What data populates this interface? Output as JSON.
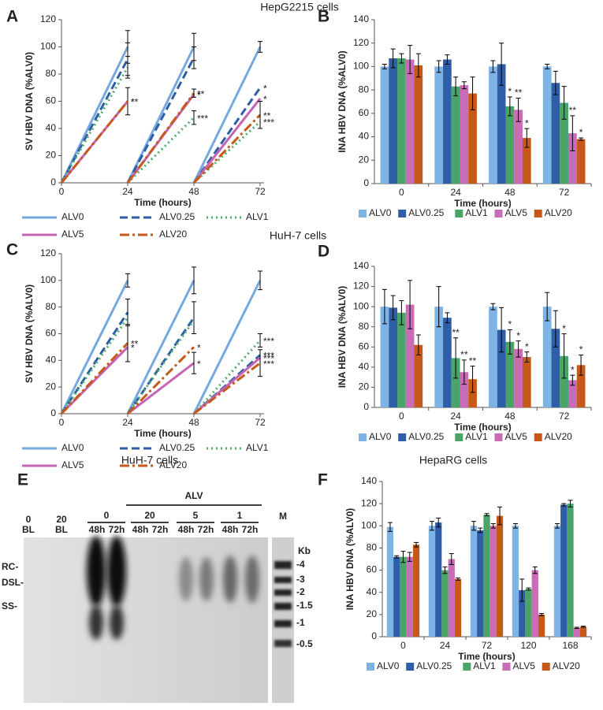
{
  "chart_data": [
    {
      "type": "line",
      "panel": "A",
      "title": "HepG2215 cells",
      "xlabel": "Time (hours)",
      "ylabel": "SV HBV DNA (%ALV0)",
      "x": [
        0,
        24,
        24,
        24,
        48,
        48,
        48,
        72
      ],
      "xlim": [
        0,
        72
      ],
      "xticks": [
        0,
        24,
        48,
        72
      ],
      "ylim": [
        0,
        120
      ],
      "yticks": [
        0,
        20,
        40,
        60,
        80,
        100,
        120
      ],
      "series": [
        {
          "name": "ALV0",
          "color": "#76a9de",
          "dash": "solid",
          "values": [
            0,
            100,
            null,
            0,
            100,
            null,
            0,
            100
          ],
          "errors": [
            null,
            12,
            null,
            null,
            10,
            null,
            null,
            4
          ],
          "stars": [
            null,
            null,
            null,
            null,
            null,
            null,
            null,
            null
          ]
        },
        {
          "name": "ALV0.25",
          "color": "#2f5ea6",
          "dash": "dashed",
          "values": [
            0,
            91,
            null,
            0,
            92,
            null,
            0,
            70
          ],
          "errors": [
            null,
            12,
            null,
            null,
            8,
            null,
            null,
            null
          ],
          "stars": [
            null,
            null,
            null,
            null,
            null,
            null,
            null,
            "*"
          ]
        },
        {
          "name": "ALV1",
          "color": "#4fae6a",
          "dash": "dotted",
          "values": [
            0,
            85,
            null,
            0,
            48,
            null,
            0,
            45
          ],
          "errors": [
            null,
            8,
            null,
            null,
            5,
            null,
            null,
            null
          ],
          "stars": [
            null,
            null,
            null,
            null,
            "***",
            null,
            null,
            "***"
          ]
        },
        {
          "name": "ALV5",
          "color": "#c564b4",
          "dash": "solid",
          "values": [
            0,
            60,
            null,
            0,
            65,
            null,
            0,
            62
          ],
          "errors": [
            null,
            10,
            null,
            null,
            null,
            null,
            null,
            null
          ],
          "stars": [
            null,
            "*",
            null,
            null,
            "*",
            null,
            null,
            "*"
          ]
        },
        {
          "name": "ALV20",
          "color": "#c55a1a",
          "dash": "dashdot",
          "values": [
            0,
            60,
            null,
            0,
            66,
            null,
            0,
            50
          ],
          "errors": [
            null,
            null,
            null,
            null,
            3,
            null,
            null,
            10
          ],
          "stars": [
            null,
            "**",
            null,
            null,
            "**",
            null,
            null,
            "**"
          ]
        }
      ]
    },
    {
      "type": "bar",
      "panel": "B",
      "xlabel": "Time (hours)",
      "ylabel": "INA HBV DNA (%ALV0)",
      "categories": [
        "0",
        "24",
        "48",
        "72"
      ],
      "ylim": [
        0,
        140
      ],
      "yticks": [
        0,
        20,
        40,
        60,
        80,
        100,
        120,
        140
      ],
      "series": [
        {
          "name": "ALV0",
          "color": "#7eb3e6",
          "values": [
            100,
            100,
            100,
            100
          ],
          "errors": [
            2,
            5,
            5,
            2
          ],
          "stars": [
            null,
            null,
            null,
            null
          ]
        },
        {
          "name": "ALV0.25",
          "color": "#2e5ea8",
          "values": [
            107,
            106,
            102,
            86
          ],
          "errors": [
            8,
            4,
            18,
            10
          ],
          "stars": [
            null,
            null,
            null,
            null
          ]
        },
        {
          "name": "ALV1",
          "color": "#4aa467",
          "values": [
            107,
            83,
            66,
            69
          ],
          "errors": [
            4,
            8,
            8,
            14
          ],
          "stars": [
            null,
            null,
            "*",
            null
          ]
        },
        {
          "name": "ALV5",
          "color": "#c96bb7",
          "values": [
            106,
            84,
            63,
            43
          ],
          "errors": [
            12,
            3,
            10,
            15
          ],
          "stars": [
            null,
            null,
            "**",
            "**"
          ]
        },
        {
          "name": "ALV20",
          "color": "#c6581a",
          "values": [
            101,
            77,
            39,
            38
          ],
          "errors": [
            10,
            14,
            8,
            1
          ],
          "stars": [
            null,
            null,
            "*",
            "*"
          ]
        }
      ]
    },
    {
      "type": "line",
      "panel": "C",
      "title": "HuH-7 cells",
      "xlabel": "Time (hours)",
      "ylabel": "SV HBV DNA (%ALV0)",
      "x": [
        0,
        24,
        24,
        24,
        48,
        48,
        48,
        72
      ],
      "xlim": [
        0,
        72
      ],
      "xticks": [
        0,
        24,
        48,
        72
      ],
      "ylim": [
        0,
        120
      ],
      "yticks": [
        0,
        20,
        40,
        60,
        80,
        100,
        120
      ],
      "series": [
        {
          "name": "ALV0",
          "color": "#76a9de",
          "dash": "solid",
          "values": [
            0,
            100,
            null,
            0,
            100,
            null,
            0,
            100
          ],
          "errors": [
            null,
            5,
            null,
            null,
            10,
            null,
            null,
            7
          ],
          "stars": [
            null,
            null,
            null,
            null,
            null,
            null,
            null,
            null
          ]
        },
        {
          "name": "ALV0.25",
          "color": "#2f5ea6",
          "dash": "dashed",
          "values": [
            0,
            76,
            null,
            0,
            72,
            null,
            0,
            44
          ],
          "errors": [
            null,
            10,
            null,
            null,
            12,
            null,
            null,
            null
          ],
          "stars": [
            null,
            null,
            null,
            null,
            null,
            null,
            null,
            "***"
          ]
        },
        {
          "name": "ALV1",
          "color": "#4fae6a",
          "dash": "dotted",
          "values": [
            0,
            72,
            null,
            0,
            70,
            null,
            0,
            55
          ],
          "errors": [
            null,
            null,
            null,
            null,
            null,
            null,
            null,
            5
          ],
          "stars": [
            null,
            null,
            null,
            null,
            null,
            null,
            null,
            "***"
          ]
        },
        {
          "name": "ALV5",
          "color": "#c564b4",
          "dash": "solid",
          "values": [
            0,
            50,
            null,
            0,
            38,
            null,
            0,
            42
          ],
          "errors": [
            null,
            null,
            null,
            null,
            8,
            null,
            null,
            null
          ],
          "stars": [
            null,
            "*",
            null,
            null,
            "*",
            null,
            null,
            "***"
          ]
        },
        {
          "name": "ALV20",
          "color": "#c55a1a",
          "dash": "dashdot",
          "values": [
            0,
            53,
            null,
            0,
            50,
            null,
            0,
            38
          ],
          "errors": [
            null,
            14,
            null,
            null,
            null,
            null,
            null,
            10
          ],
          "stars": [
            null,
            "**",
            null,
            null,
            "*",
            null,
            null,
            "***"
          ]
        }
      ]
    },
    {
      "type": "bar",
      "panel": "D",
      "xlabel": "Time (hours)",
      "ylabel": "INA HBV DNA (%ALV0)",
      "categories": [
        "0",
        "24",
        "48",
        "72"
      ],
      "ylim": [
        0,
        140
      ],
      "yticks": [
        0,
        20,
        40,
        60,
        80,
        100,
        120,
        140
      ],
      "series": [
        {
          "name": "ALV0",
          "color": "#7eb3e6",
          "values": [
            100,
            100,
            100,
            100
          ],
          "errors": [
            17,
            20,
            3,
            14
          ],
          "stars": [
            null,
            null,
            null,
            null
          ]
        },
        {
          "name": "ALV0.25",
          "color": "#2e5ea8",
          "values": [
            99,
            89,
            77,
            78
          ],
          "errors": [
            12,
            5,
            22,
            18
          ],
          "stars": [
            null,
            null,
            null,
            null
          ]
        },
        {
          "name": "ALV1",
          "color": "#4aa467",
          "values": [
            94,
            49,
            65,
            51
          ],
          "errors": [
            12,
            20,
            12,
            22
          ],
          "stars": [
            null,
            "**",
            "*",
            "*"
          ]
        },
        {
          "name": "ALV5",
          "color": "#c96bb7",
          "values": [
            102,
            35,
            58,
            27
          ],
          "errors": [
            24,
            12,
            8,
            5
          ],
          "stars": [
            null,
            "**",
            "*",
            "*"
          ]
        },
        {
          "name": "ALV20",
          "color": "#c6581a",
          "values": [
            62,
            28,
            50,
            42
          ],
          "errors": [
            10,
            13,
            5,
            10
          ],
          "stars": [
            null,
            "**",
            "*",
            "*"
          ]
        }
      ]
    },
    {
      "type": "bar",
      "panel": "F",
      "title": "HepaRG cells",
      "xlabel": "Time (hours)",
      "ylabel": "INA HBV DNA (%ALV0)",
      "categories": [
        "0",
        "24",
        "72",
        "120",
        "168"
      ],
      "ylim": [
        0,
        140
      ],
      "yticks": [
        0,
        20,
        40,
        60,
        80,
        100,
        120,
        140
      ],
      "series": [
        {
          "name": "ALV0",
          "color": "#7eb3e6",
          "values": [
            99,
            100,
            100,
            100,
            100
          ],
          "errors": [
            4,
            4,
            4,
            2,
            2
          ],
          "stars": [
            null,
            null,
            null,
            null,
            null
          ]
        },
        {
          "name": "ALV0.25",
          "color": "#2e5ea8",
          "values": [
            72,
            103,
            96,
            42,
            119
          ],
          "errors": [
            1,
            4,
            2,
            10,
            1
          ],
          "stars": [
            null,
            null,
            null,
            null,
            null
          ]
        },
        {
          "name": "ALV1",
          "color": "#4aa467",
          "values": [
            72,
            60,
            110,
            43,
            120
          ],
          "errors": [
            5,
            3,
            1,
            1,
            3
          ],
          "stars": [
            null,
            null,
            null,
            null,
            null
          ]
        },
        {
          "name": "ALV5",
          "color": "#c96bb7",
          "values": [
            72,
            70,
            100,
            60,
            8
          ],
          "errors": [
            4,
            5,
            2,
            3,
            0.5
          ],
          "stars": [
            null,
            null,
            null,
            null,
            null
          ]
        },
        {
          "name": "ALV20",
          "color": "#c6581a",
          "values": [
            83,
            52,
            109,
            20,
            9
          ],
          "errors": [
            2,
            1,
            8,
            1,
            0.5
          ],
          "stars": [
            null,
            null,
            null,
            null,
            null
          ]
        }
      ]
    }
  ],
  "gel": {
    "panel": "E",
    "title": "HuH-7 cells",
    "group_label": "ALV",
    "blank_lanes": [
      {
        "top": "0",
        "bottom": "BL"
      },
      {
        "top": "20",
        "bottom": "BL"
      }
    ],
    "groups": [
      {
        "label": "0",
        "times": [
          "48h",
          "72h"
        ]
      },
      {
        "label": "20",
        "times": [
          "48h",
          "72h"
        ]
      },
      {
        "label": "5",
        "times": [
          "48h",
          "72h"
        ]
      },
      {
        "label": "1",
        "times": [
          "48h",
          "72h"
        ]
      }
    ],
    "marker": "M",
    "unit": "Kb",
    "sizes": [
      "-4",
      "-3",
      "-2",
      "-1.5",
      "-1",
      "-0.5"
    ],
    "forms": [
      "RC-",
      "DSL-",
      "SS-"
    ]
  }
}
